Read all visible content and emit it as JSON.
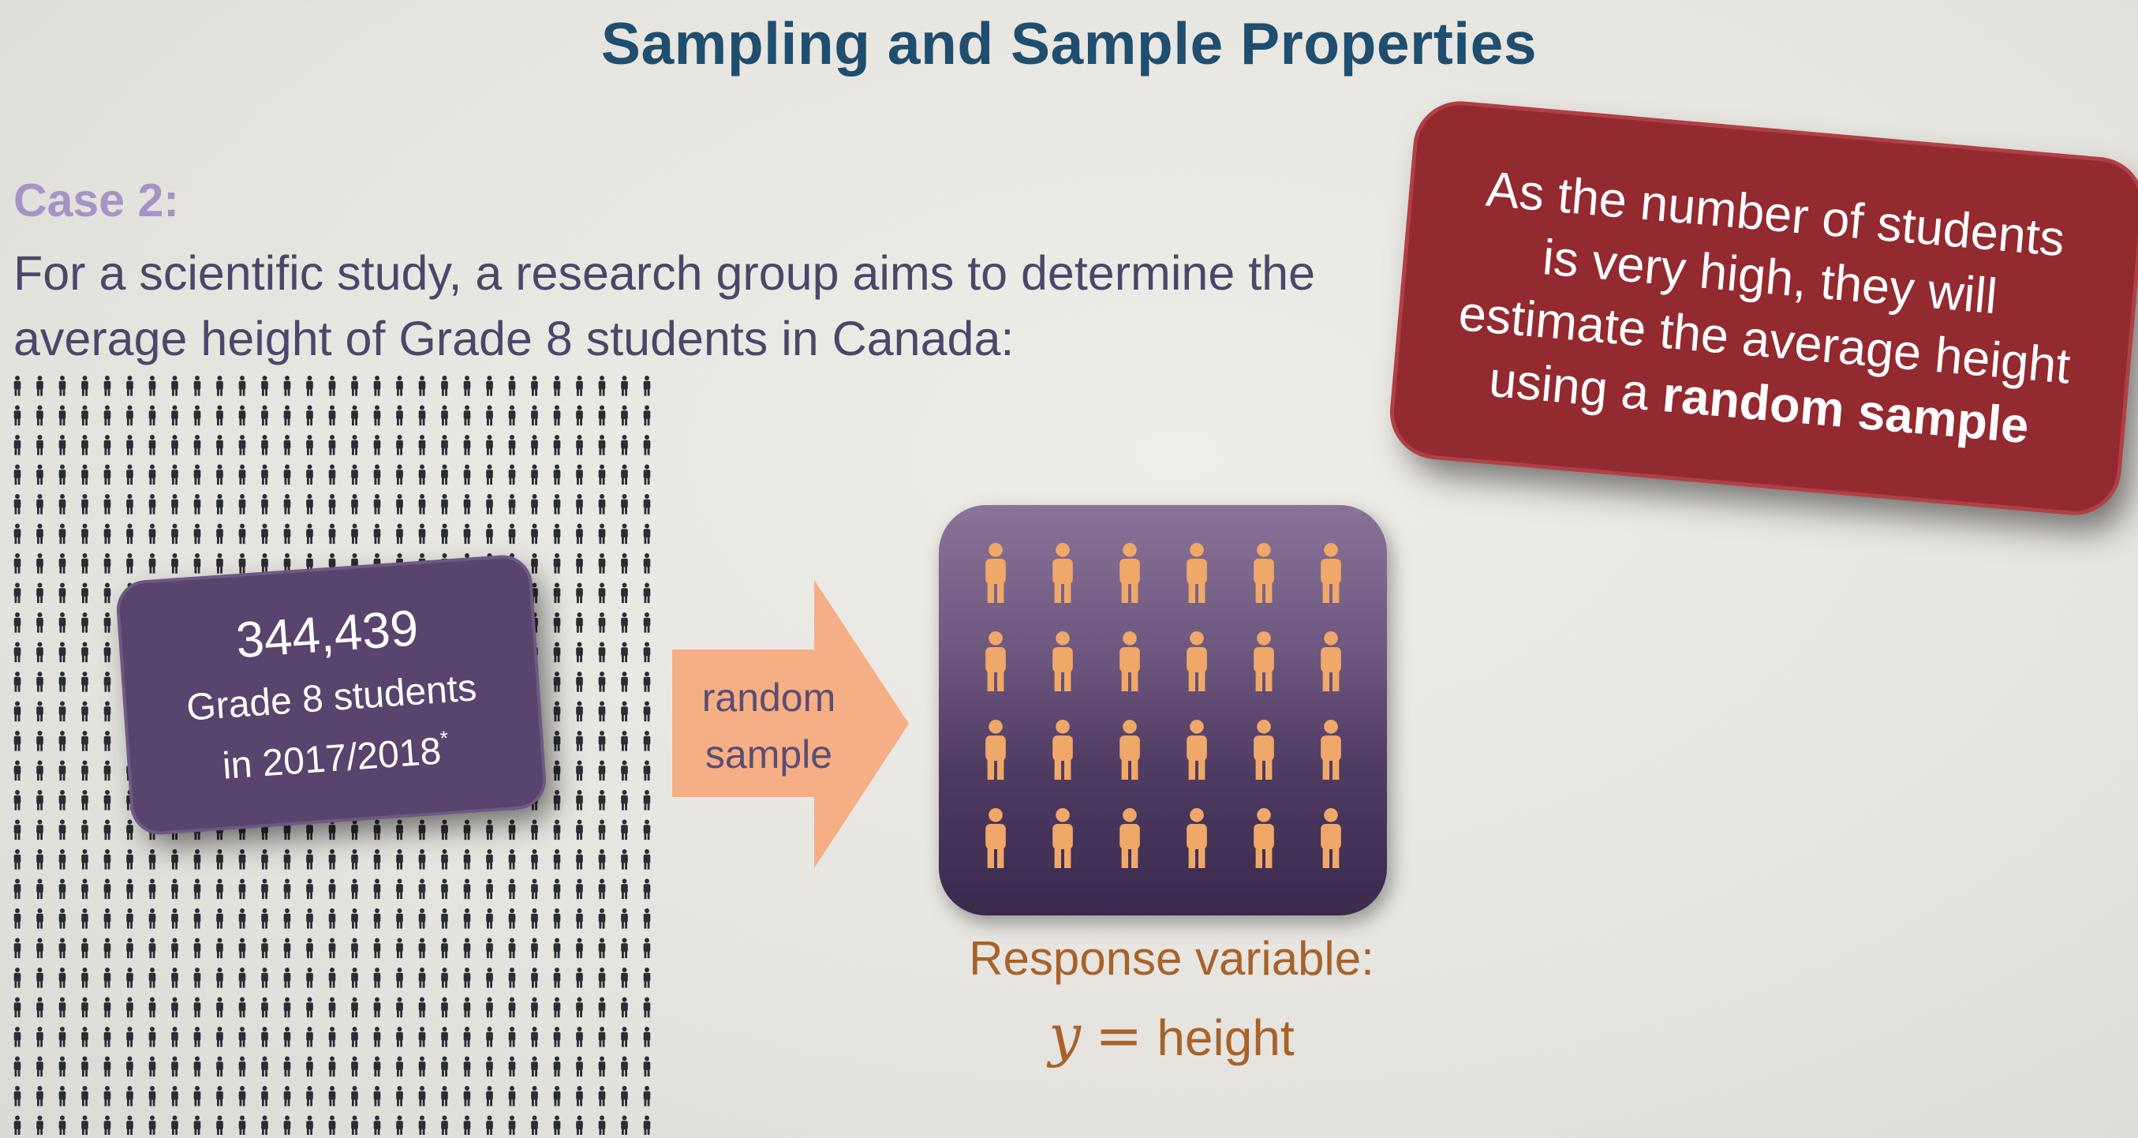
{
  "title": "Sampling and Sample Properties",
  "case": {
    "label": "Case 2:",
    "line1": "For a scientific study, a research group aims to determine the",
    "line2": "average height of Grade 8 students in Canada:"
  },
  "population": {
    "count": "344,439",
    "line1": "Grade 8 students",
    "line2": "in 2017/2018",
    "footnote_mark": "*"
  },
  "arrow": {
    "line1": "random",
    "line2": "sample"
  },
  "response": {
    "label": "Response variable:",
    "variable": "y",
    "equals": "=",
    "value": "height"
  },
  "callout": {
    "line1": "As the number of students",
    "line2": "is very high, they will",
    "line3": "estimate the average height",
    "line4_prefix": "using a ",
    "line4_highlight": "random sample"
  },
  "colors": {
    "title": "#1f4e6e",
    "case_label": "#a693c5",
    "body_text": "#4e4669",
    "crowd_figure": "#2c2c34",
    "population_box": "#59446d",
    "arrow": "#f6ae85",
    "sample_figure": "#f0a868",
    "response_text": "#a8622a",
    "callout_bg": "#932a30"
  },
  "icons": {
    "crowd": "person-icon",
    "sample": "person-icon",
    "arrow": "right-arrow-icon"
  }
}
